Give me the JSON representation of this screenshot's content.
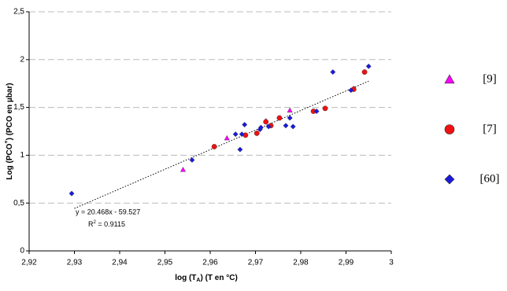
{
  "chart_data": {
    "type": "scatter",
    "y_label": [
      "Log (PCO",
      "+",
      ") (PCO en µbar)"
    ],
    "x_label": [
      "log (T",
      "A",
      ") (T en °C)"
    ],
    "xlim": [
      2.92,
      3
    ],
    "ylim": [
      0,
      2.5
    ],
    "xticks": [
      {
        "value": 2.92,
        "label": "2,92"
      },
      {
        "value": 2.93,
        "label": "2,93"
      },
      {
        "value": 2.94,
        "label": "2,94"
      },
      {
        "value": 2.95,
        "label": "2,95"
      },
      {
        "value": 2.96,
        "label": "2,96"
      },
      {
        "value": 2.97,
        "label": "2,97"
      },
      {
        "value": 2.98,
        "label": "2,98"
      },
      {
        "value": 2.99,
        "label": "2,99"
      },
      3
    ],
    "yticks": [
      0,
      {
        "value": 0.5,
        "label": "0,5"
      },
      1,
      {
        "value": 1.5,
        "label": "1,5"
      },
      2,
      {
        "value": 2.5,
        "label": "2,5"
      }
    ],
    "grid": true,
    "series": [
      {
        "name": "[9]",
        "color": "#ff00ff",
        "marker": "triangle",
        "x": [
          2.954,
          2.9637,
          2.9723,
          2.9776,
          2.9917
        ],
        "values": [
          0.85,
          1.18,
          1.36,
          1.47,
          1.7
        ]
      },
      {
        "name": "[7]",
        "color": "#ee1111",
        "marker": "circle",
        "x": [
          2.9609,
          2.9678,
          2.9703,
          2.9723,
          2.9734,
          2.9753,
          2.9828,
          2.9854,
          2.9917,
          2.9941
        ],
        "values": [
          1.09,
          1.21,
          1.23,
          1.35,
          1.31,
          1.39,
          1.46,
          1.49,
          1.69,
          1.87
        ]
      },
      {
        "name": "[60]",
        "color": "#1a1adc",
        "marker": "diamond",
        "x": [
          2.9294,
          2.956,
          2.9656,
          2.9666,
          2.967,
          2.9676,
          2.971,
          2.9712,
          2.9729,
          2.9767,
          2.9776,
          2.9783,
          2.9835,
          2.9871,
          2.9911,
          2.995
        ],
        "values": [
          0.6,
          0.95,
          1.22,
          1.06,
          1.22,
          1.32,
          1.27,
          1.29,
          1.3,
          1.31,
          1.39,
          1.3,
          1.46,
          1.87,
          1.68,
          1.93
        ]
      }
    ],
    "trendline": {
      "x": [
        2.93,
        2.995
      ],
      "values": [
        0.444,
        1.775
      ],
      "equation": "y = 20.468x - 59.527",
      "r2": [
        "R",
        "2",
        " = 0.9115"
      ]
    }
  }
}
